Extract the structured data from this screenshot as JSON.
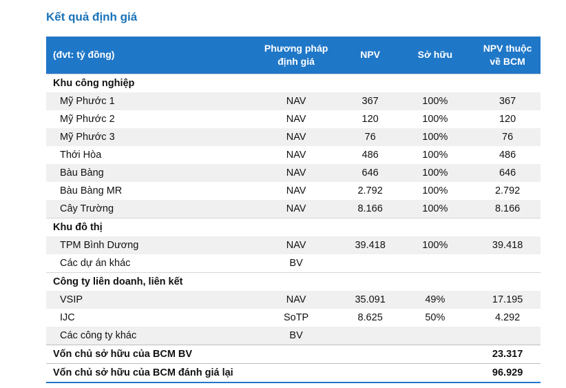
{
  "title": "Kết quả định giá",
  "header": {
    "c0": "(đvt: tỷ đồng)",
    "c1_line1": "Phương pháp",
    "c1_line2": "định giá",
    "c2": "NPV",
    "c3": "Sở hữu",
    "c4_line1": "NPV thuộc",
    "c4_line2": "về BCM"
  },
  "rows": [
    {
      "type": "section",
      "name": "Khu công nghiệp"
    },
    {
      "type": "item",
      "name": "Mỹ Phước 1",
      "method": "NAV",
      "npv": "367",
      "own": "100%",
      "bcm": "367"
    },
    {
      "type": "item",
      "name": "Mỹ Phước 2",
      "method": "NAV",
      "npv": "120",
      "own": "100%",
      "bcm": "120"
    },
    {
      "type": "item",
      "name": "Mỹ Phước 3",
      "method": "NAV",
      "npv": "76",
      "own": "100%",
      "bcm": "76"
    },
    {
      "type": "item",
      "name": "Thới Hòa",
      "method": "NAV",
      "npv": "486",
      "own": "100%",
      "bcm": "486"
    },
    {
      "type": "item",
      "name": "Bàu Bàng",
      "method": "NAV",
      "npv": "646",
      "own": "100%",
      "bcm": "646"
    },
    {
      "type": "item",
      "name": "Bàu Bàng MR",
      "method": "NAV",
      "npv": "2.792",
      "own": "100%",
      "bcm": "2.792"
    },
    {
      "type": "item",
      "name": "Cây Trường",
      "method": "NAV",
      "npv": "8.166",
      "own": "100%",
      "bcm": "8.166"
    },
    {
      "type": "section",
      "name": "Khu đô thị"
    },
    {
      "type": "item",
      "name": "TPM Bình Dương",
      "method": "NAV",
      "npv": "39.418",
      "own": "100%",
      "bcm": "39.418"
    },
    {
      "type": "item",
      "name": "Các dự án khác",
      "method": "BV",
      "npv": "",
      "own": "",
      "bcm": ""
    },
    {
      "type": "section",
      "name": "Công ty liên doanh, liên kết"
    },
    {
      "type": "item",
      "name": "VSIP",
      "method": "NAV",
      "npv": "35.091",
      "own": "49%",
      "bcm": "17.195"
    },
    {
      "type": "item",
      "name": "IJC",
      "method": "SoTP",
      "npv": "8.625",
      "own": "50%",
      "bcm": "4.292"
    },
    {
      "type": "item",
      "name": "Các công ty khác",
      "method": "BV",
      "npv": "",
      "own": "",
      "bcm": ""
    },
    {
      "type": "total",
      "name": "Vốn chủ sở hữu của BCM BV",
      "bcm": "23.317"
    },
    {
      "type": "total",
      "name": "Vốn chủ sở hữu của BCM đánh giá lại",
      "bcm": "96.929"
    }
  ]
}
